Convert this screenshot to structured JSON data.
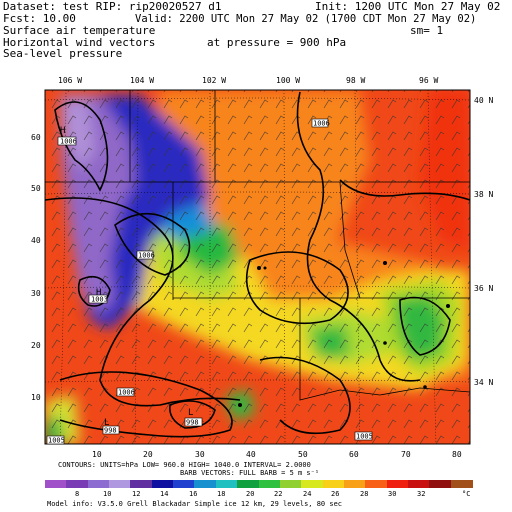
{
  "header": {
    "dataset_line": "Dataset: test  RIP: rip20020527 d1",
    "init_line": "Init: 1200 UTC Mon 27 May 02",
    "fcst_line": "Fcst:    10.00",
    "valid_line": "Valid: 2200 UTC Mon 27 May 02 (1700 CDT Mon 27 May 02)",
    "field1": "Surface air temperature",
    "sm_line": "sm= 1",
    "field2": "Horizontal wind vectors",
    "pressure_line": "at pressure =  900 hPa",
    "field3": "Sea-level pressure"
  },
  "map": {
    "lon_labels_top": [
      "106 W",
      "104 W",
      "102 W",
      "100 W",
      "98 W",
      "96 W"
    ],
    "lat_labels_right": [
      "40 N",
      "38 N",
      "36 N",
      "34 N"
    ],
    "left_ticks": [
      "60",
      "50",
      "40",
      "30",
      "20",
      "10"
    ],
    "bottom_ticks": [
      "10",
      "20",
      "30",
      "40",
      "50",
      "60",
      "70",
      "80"
    ],
    "pressure_boxes": [
      "1006",
      "1006",
      "1003",
      "1006",
      "1006",
      "998",
      "998",
      "1005",
      "1005"
    ],
    "high_low_markers": [
      "H",
      "H",
      "L",
      "L"
    ],
    "colors": {
      "blue": "#3030c8",
      "purple": "#9a70c8",
      "cyan": "#2090d8",
      "green": "#30b840",
      "yellow_green": "#b8e030",
      "yellow": "#f8e020",
      "orange": "#f89020",
      "red": "#f03010"
    }
  },
  "footer": {
    "contour_line": "CONTOURS:  UNITS=hPa  LOW=  960.0        HIGH=  1040.0     INTERVAL=    2.0000",
    "barb_line": "BARB VECTORS:  FULL BARB = 5 m s⁻¹",
    "model_info": "Model info: V3.5.0  Grell    Blackadar  Simple ice    12 km,  29 levels,   80 sec"
  },
  "colorbar": {
    "labels": [
      "8",
      "10",
      "12",
      "14",
      "16",
      "18",
      "20",
      "22",
      "24",
      "26",
      "28",
      "30",
      "32",
      "°C"
    ],
    "colors": [
      "#a050c8",
      "#7a3cb4",
      "#8c6cd0",
      "#b098e0",
      "#6030a0",
      "#1010a0",
      "#2040d0",
      "#1890d0",
      "#20c0c0",
      "#10a040",
      "#30c040",
      "#90d030",
      "#d8e820",
      "#f8d018",
      "#f8a018",
      "#f86018",
      "#f02010",
      "#c81010",
      "#901010",
      "#a05018"
    ]
  }
}
